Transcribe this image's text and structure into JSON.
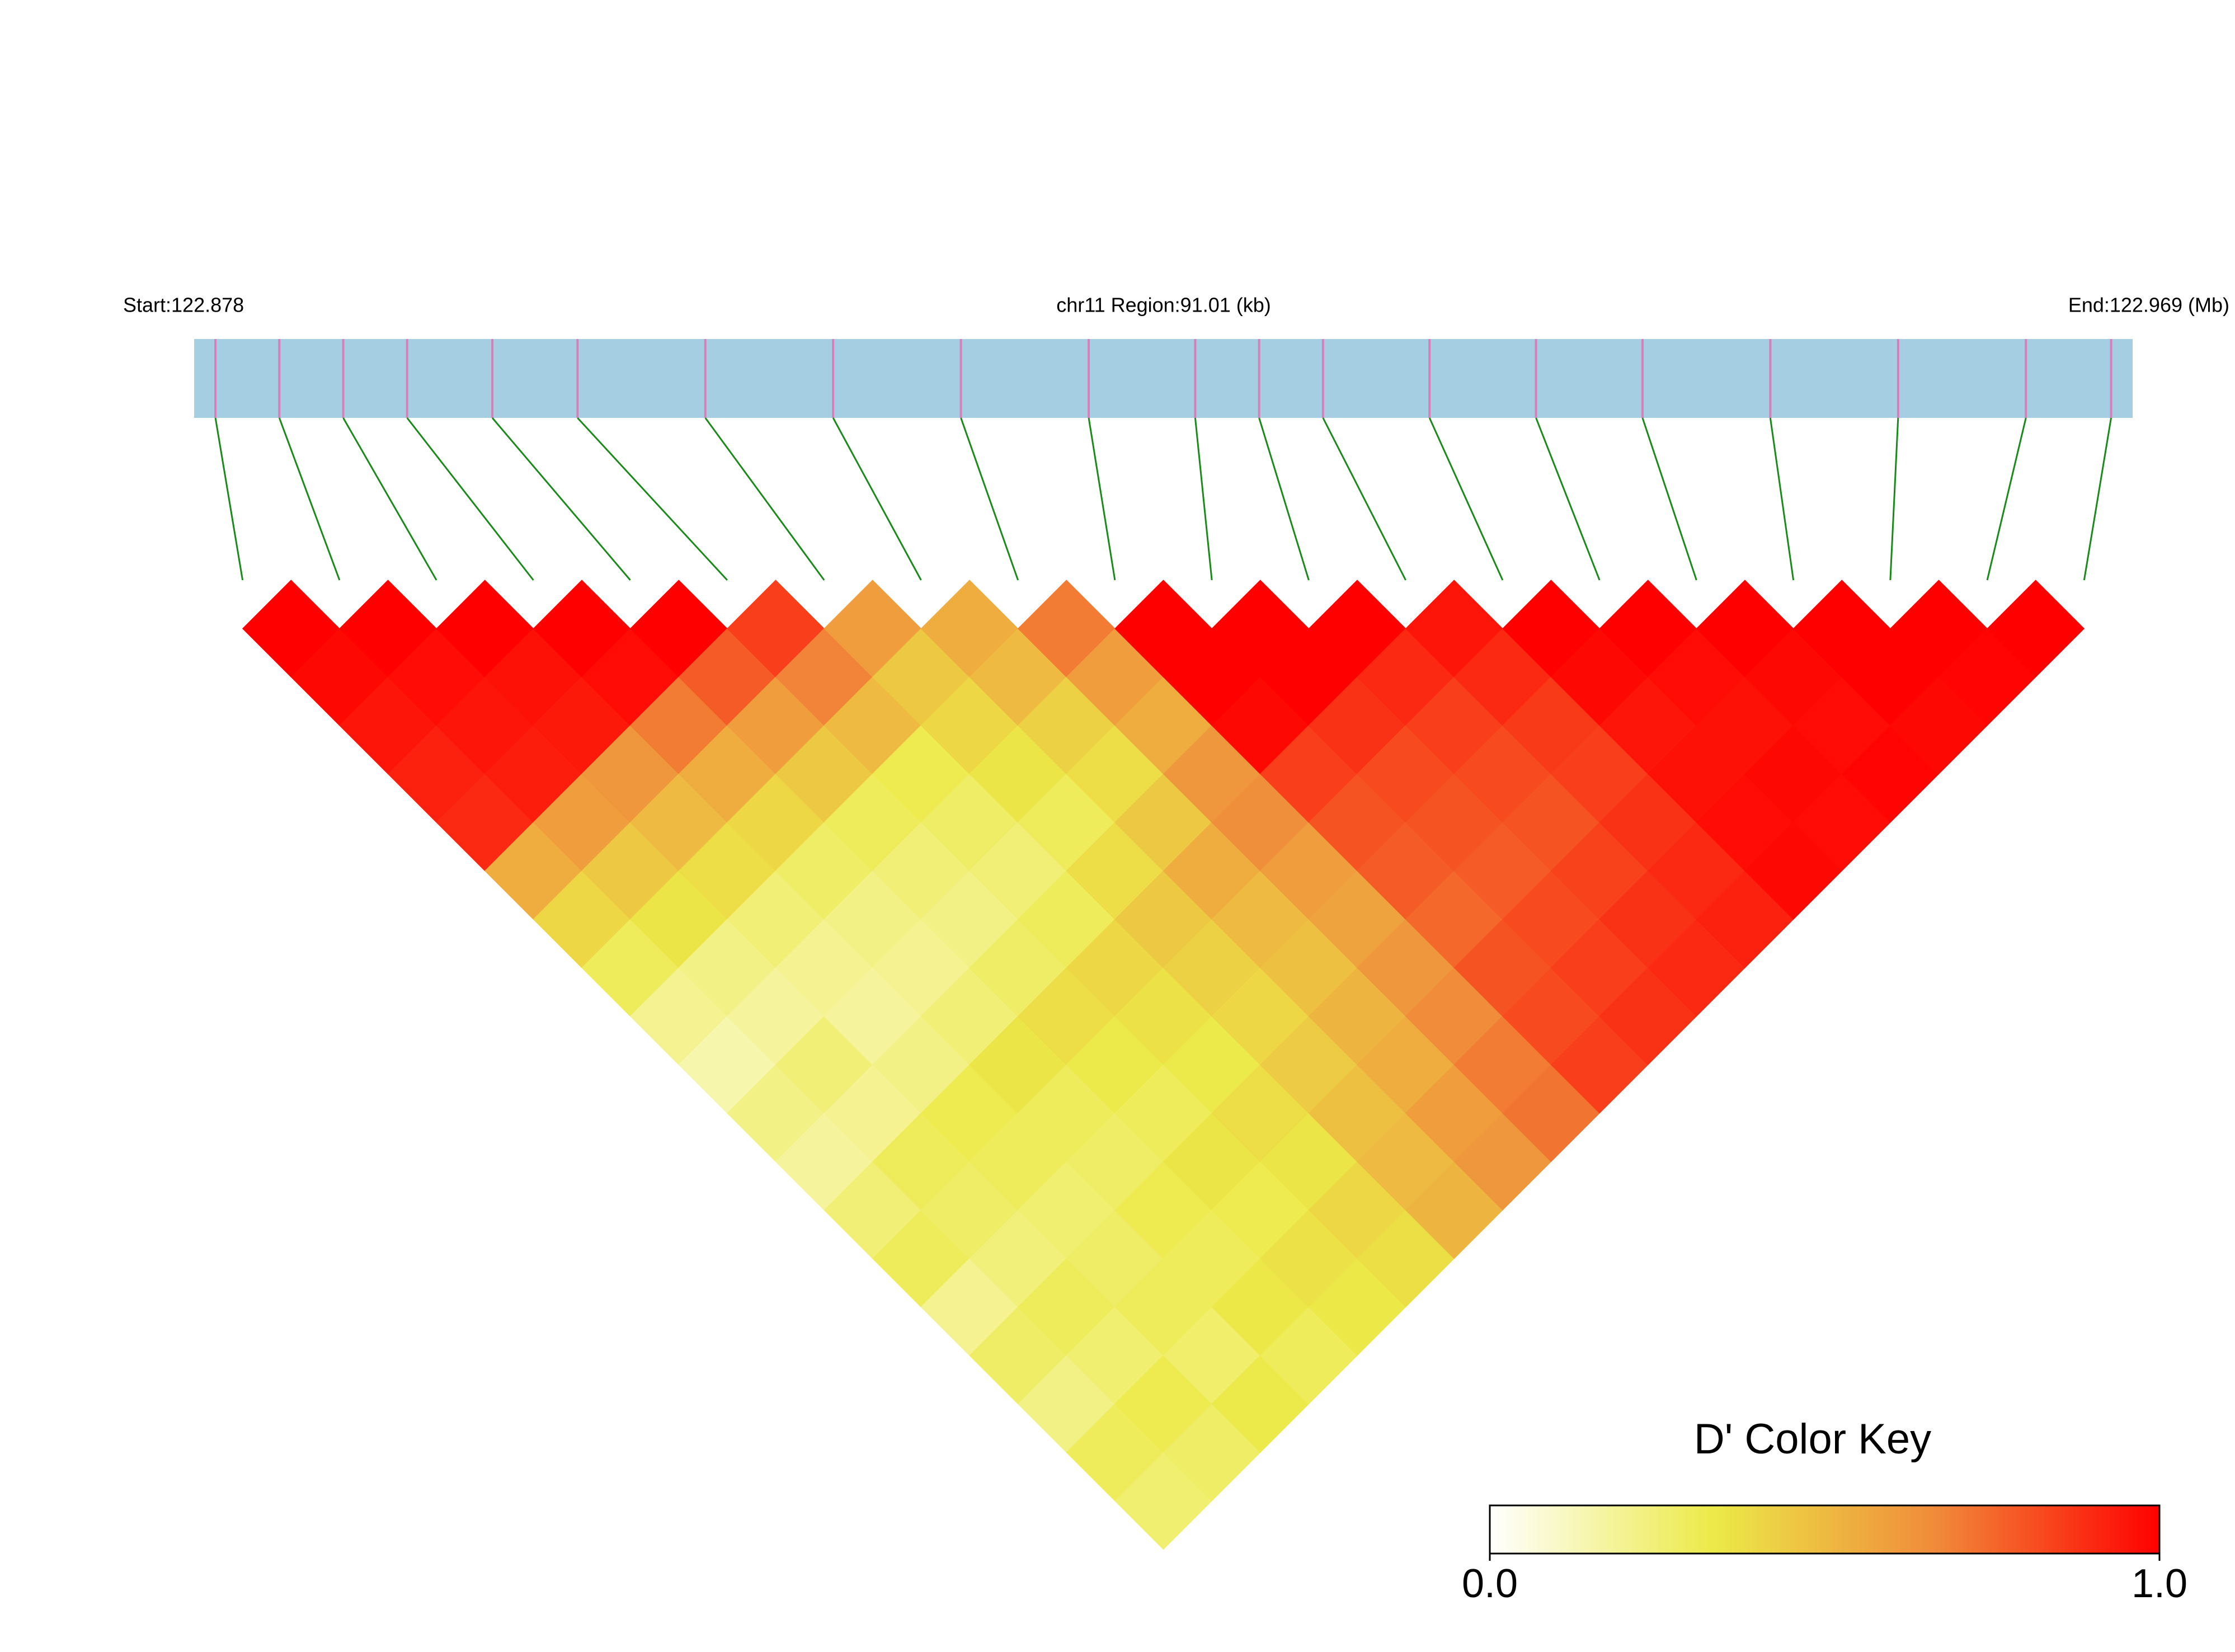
{
  "chart_data": {
    "type": "ld-heatmap",
    "start_label": "Start:122.878",
    "title": "chr11 Region:91.01 (kb)",
    "end_label": "End:122.969 (Mb)",
    "xlim": [
      0,
      91.01
    ],
    "positions_kb": [
      1,
      4,
      7,
      10,
      14,
      18,
      24,
      30,
      36,
      42,
      47,
      50,
      53,
      58,
      63,
      68,
      74,
      80,
      86,
      90
    ],
    "position_color": "#d67fb8",
    "track_color": "#a6cee3",
    "link_color": "#1a8a1a",
    "matrix": [
      [
        1,
        0.98,
        0.95,
        0.92,
        0.9,
        0.55,
        0.4,
        0.3,
        0.2,
        0.15,
        0.22,
        0.18,
        0.25,
        0.3,
        0.2,
        0.28,
        0.22,
        0.3,
        0.26
      ],
      [
        1,
        0.97,
        0.95,
        0.93,
        0.6,
        0.45,
        0.35,
        0.22,
        0.18,
        0.25,
        0.2,
        0.3,
        0.28,
        0.24,
        0.3,
        0.26,
        0.32,
        0.28
      ],
      [
        1,
        0.96,
        0.94,
        0.62,
        0.5,
        0.38,
        0.25,
        0.2,
        0.18,
        0.22,
        0.32,
        0.3,
        0.26,
        0.28,
        0.3,
        0.27,
        0.33
      ],
      [
        1,
        0.97,
        0.7,
        0.55,
        0.4,
        0.28,
        0.22,
        0.2,
        0.25,
        0.35,
        0.3,
        0.28,
        0.32,
        0.3,
        0.34,
        0.3
      ],
      [
        1,
        0.78,
        0.6,
        0.45,
        0.3,
        0.25,
        0.22,
        0.28,
        0.38,
        0.33,
        0.3,
        0.35,
        0.32,
        0.36,
        0.34
      ],
      [
        0.85,
        0.68,
        0.5,
        0.32,
        0.28,
        0.25,
        0.3,
        0.4,
        0.36,
        0.33,
        0.38,
        0.35,
        0.4,
        0.37
      ],
      [
        0.6,
        0.45,
        0.4,
        0.35,
        0.3,
        0.38,
        0.45,
        0.42,
        0.4,
        0.44,
        0.48,
        0.5,
        0.52
      ],
      [
        0.55,
        0.5,
        0.42,
        0.38,
        0.45,
        0.55,
        0.5,
        0.48,
        0.52,
        0.55,
        0.6,
        0.62
      ],
      [
        0.7,
        0.6,
        0.55,
        0.62,
        0.65,
        0.6,
        0.58,
        0.62,
        0.66,
        0.7,
        0.72
      ],
      [
        1,
        1,
        0.98,
        0.85,
        0.8,
        0.78,
        0.75,
        0.8,
        0.82,
        0.85
      ],
      [
        1,
        1,
        0.88,
        0.82,
        0.8,
        0.78,
        0.82,
        0.85,
        0.88
      ],
      [
        1,
        0.9,
        0.85,
        0.82,
        0.8,
        0.84,
        0.88,
        0.9
      ],
      [
        0.95,
        0.9,
        0.86,
        0.85,
        0.88,
        0.9,
        0.92
      ],
      [
        1,
        0.98,
        0.95,
        0.96,
        0.97,
        0.98
      ],
      [
        1,
        0.97,
        0.96,
        0.98,
        0.97
      ],
      [
        1,
        0.98,
        0.97,
        0.99
      ],
      [
        1,
        1,
        0.98
      ],
      [
        1,
        0.99
      ],
      [
        1
      ]
    ],
    "color_scale": [
      "#ffffff",
      "#ecea48",
      "#f08a3a",
      "#ff0000"
    ],
    "key_title": "D' Color Key",
    "zlim": [
      0,
      1
    ],
    "zticks": [
      {
        "value": 0,
        "label": "0.0"
      },
      {
        "value": 1,
        "label": "1.0"
      }
    ]
  }
}
